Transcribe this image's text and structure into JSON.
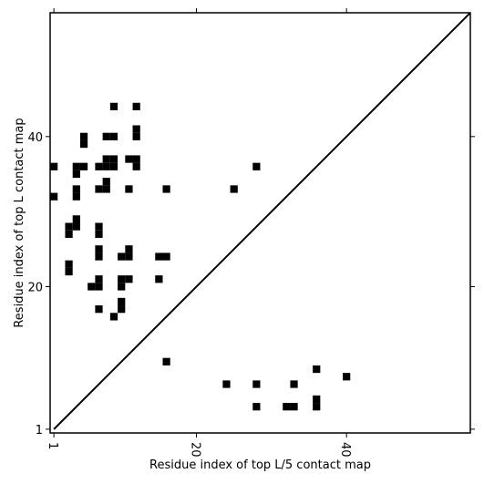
{
  "chart_data": {
    "type": "heatmap",
    "title": "",
    "xlabel": "Residue index of top L/5 contact map",
    "ylabel": "Residue index of top L contact map",
    "xlim": [
      0.5,
      56.5
    ],
    "ylim": [
      0.5,
      56.5
    ],
    "x_ticks": [
      1,
      20,
      40
    ],
    "x_tick_labels": [
      "1",
      "20",
      "40"
    ],
    "y_ticks": [
      1,
      20,
      40
    ],
    "y_tick_labels": [
      "1",
      "20",
      "40"
    ],
    "diagonal": true,
    "grid": false,
    "legend": "none",
    "cell_color": "#000000",
    "line_color": "#000000",
    "upper_cells": [
      [
        1,
        36
      ],
      [
        1,
        32
      ],
      [
        3,
        28
      ],
      [
        3,
        27
      ],
      [
        3,
        23
      ],
      [
        3,
        22
      ],
      [
        4,
        36
      ],
      [
        4,
        35
      ],
      [
        4,
        33
      ],
      [
        4,
        32
      ],
      [
        4,
        29
      ],
      [
        4,
        28
      ],
      [
        5,
        39
      ],
      [
        5,
        40
      ],
      [
        5,
        36
      ],
      [
        6,
        20
      ],
      [
        7,
        36
      ],
      [
        7,
        33
      ],
      [
        7,
        28
      ],
      [
        7,
        27
      ],
      [
        7,
        25
      ],
      [
        7,
        24
      ],
      [
        7,
        21
      ],
      [
        7,
        20
      ],
      [
        7,
        17
      ],
      [
        8,
        40
      ],
      [
        8,
        37
      ],
      [
        8,
        36
      ],
      [
        8,
        34
      ],
      [
        8,
        33
      ],
      [
        9,
        44
      ],
      [
        9,
        40
      ],
      [
        9,
        37
      ],
      [
        9,
        36
      ],
      [
        9,
        16
      ],
      [
        10,
        24
      ],
      [
        10,
        21
      ],
      [
        10,
        20
      ],
      [
        10,
        18
      ],
      [
        10,
        17
      ],
      [
        11,
        37
      ],
      [
        11,
        33
      ],
      [
        11,
        25
      ],
      [
        11,
        24
      ],
      [
        11,
        21
      ],
      [
        12,
        44
      ],
      [
        12,
        41
      ],
      [
        12,
        40
      ],
      [
        12,
        37
      ],
      [
        12,
        36
      ],
      [
        15,
        24
      ],
      [
        15,
        21
      ],
      [
        16,
        24
      ],
      [
        16,
        33
      ],
      [
        25,
        33
      ],
      [
        28,
        36
      ]
    ],
    "lower_cells": [
      [
        16,
        10
      ],
      [
        24,
        7
      ],
      [
        28,
        7
      ],
      [
        28,
        4
      ],
      [
        32,
        4
      ],
      [
        33,
        4
      ],
      [
        33,
        7
      ],
      [
        36,
        9
      ],
      [
        36,
        5
      ],
      [
        36,
        4
      ],
      [
        40,
        8
      ]
    ]
  }
}
